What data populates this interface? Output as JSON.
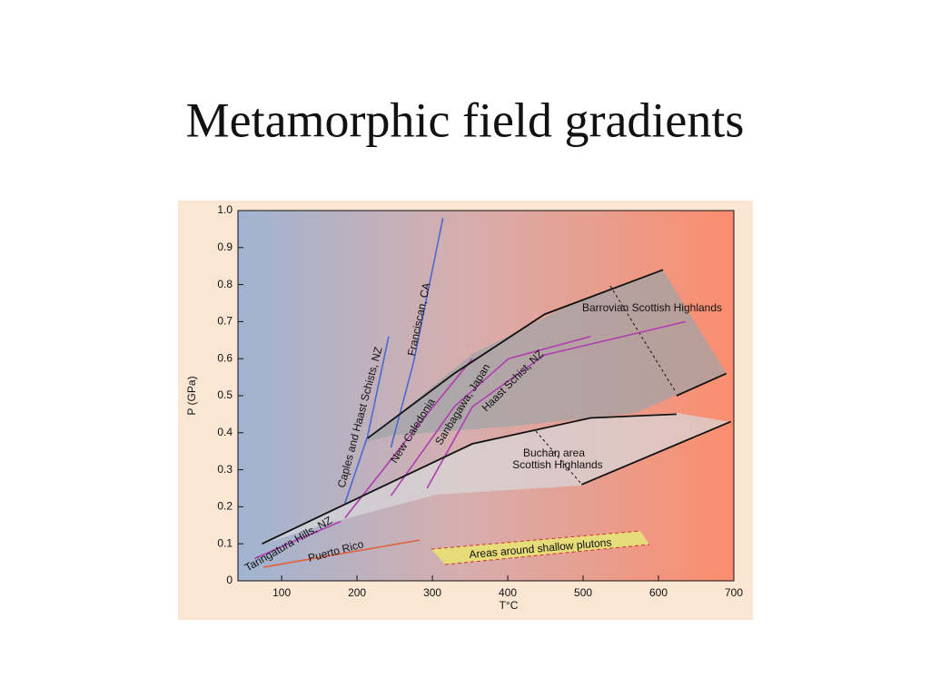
{
  "chart_data": {
    "type": "line",
    "title": "Metamorphic field gradients",
    "xlabel": "T°C",
    "ylabel": "P (GPa)",
    "xlim": [
      42,
      700
    ],
    "ylim": [
      0,
      1
    ],
    "xticks": [
      100,
      200,
      300,
      400,
      500,
      600,
      700
    ],
    "yticks": [
      0,
      0.1,
      0.2,
      0.3,
      0.4,
      0.5,
      0.6,
      0.7,
      0.8,
      0.9,
      {
        "value": 1,
        "label": "1.0"
      }
    ],
    "series": [
      {
        "name": "Puerto Rico",
        "color": "#e0603a",
        "x": [
          76,
          283
        ],
        "values": [
          0.037,
          0.11
        ]
      },
      {
        "name": "Taringatura Hills, NZ",
        "color": "#b03cb0",
        "x": [
          64,
          120,
          178
        ],
        "values": [
          0.06,
          0.11,
          0.16
        ]
      },
      {
        "name": "Caples and Haast Schists, NZ",
        "color": "#4a6ad0",
        "x": [
          184,
          214,
          242
        ],
        "values": [
          0.21,
          0.39,
          0.66
        ]
      },
      {
        "name": "Franciscan, CA",
        "color": "#4a6ad0",
        "x": [
          245,
          275,
          314
        ],
        "values": [
          0.36,
          0.59,
          0.98
        ]
      },
      {
        "name": "New Caledonia",
        "color": "#b03cb0",
        "x": [
          184,
          281,
          353
        ],
        "values": [
          0.17,
          0.42,
          0.6
        ]
      },
      {
        "name": "Sanbagawa, Japan",
        "color": "#b03cb0",
        "x": [
          245,
          329,
          401,
          510
        ],
        "values": [
          0.23,
          0.47,
          0.6,
          0.66
        ]
      },
      {
        "name": "Haast Schist, NZ",
        "color": "#b03cb0",
        "x": [
          293,
          353,
          449,
          636
        ],
        "values": [
          0.25,
          0.47,
          0.61,
          0.7
        ]
      },
      {
        "color": "#111111",
        "x": [
          214,
          329,
          449,
          606
        ],
        "values": [
          0.385,
          0.56,
          0.72,
          0.84
        ]
      },
      {
        "color": "#111111",
        "x": [
          74,
          208,
          353,
          510,
          624
        ],
        "values": [
          0.1,
          0.23,
          0.37,
          0.44,
          0.45
        ]
      },
      {
        "color": "#111111",
        "x": [
          498,
          696
        ],
        "values": [
          0.26,
          0.43
        ]
      },
      {
        "color": "#111111",
        "x": [
          624,
          690
        ],
        "values": [
          0.5,
          0.56
        ]
      }
    ],
    "annotations": [
      "Barrovian Scottish Highlands",
      "Buchan area",
      "Scottish Highlands",
      "Areas around shallow plutons"
    ]
  }
}
